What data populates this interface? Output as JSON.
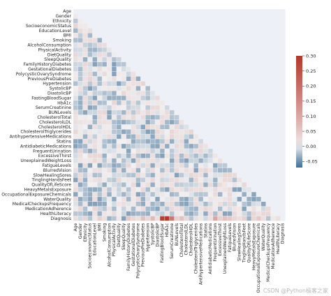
{
  "chart_data": {
    "type": "heatmap",
    "title": "",
    "variables": [
      "Age",
      "Gender",
      "Ethnicity",
      "SocioeconomicStatus",
      "EducationLevel",
      "BMI",
      "Smoking",
      "AlcoholConsumption",
      "PhysicalActivity",
      "DietQuality",
      "SleepQuality",
      "FamilyHistoryDiabetes",
      "GestationalDiabetes",
      "PolycysticOvarySyndrome",
      "PreviousPreDiabetes",
      "Hypertension",
      "SystolicBP",
      "DiastolicBP",
      "FastingBloodSugar",
      "HbA1c",
      "SerumCreatinine",
      "BUNLevels",
      "CholesterolTotal",
      "CholesterolLDL",
      "CholesterolHDL",
      "CholesterolTriglycerides",
      "AntihypertensiveMedications",
      "Statins",
      "AntidiabeticMedications",
      "FrequentUrination",
      "ExcessiveThirst",
      "UnexplainedWeightLoss",
      "FatigueLevels",
      "BlurredVision",
      "SlowHealingSores",
      "TinglingHandsFeet",
      "QualityOfLifeScore",
      "HeavyMetalsExposure",
      "OccupationalExposureChemicals",
      "WaterQuality",
      "MedicalCheckupsFrequency",
      "MedicationAdherence",
      "HealthLiteracy",
      "Diagnosis"
    ],
    "diagnosis_row": [
      0.02,
      -0.01,
      0.03,
      -0.02,
      0.01,
      0.04,
      0.02,
      -0.03,
      -0.02,
      0.01,
      -0.04,
      0.05,
      0.03,
      0.02,
      0.06,
      0.03,
      0.07,
      0.02,
      0.28,
      0.3,
      0.18,
      0.04,
      0.06,
      0.03,
      -0.02,
      0.02,
      0.01,
      -0.01,
      0.02,
      0.1,
      0.04,
      0.06,
      0.05,
      0.03,
      0.02,
      0.04,
      -0.03,
      0.03,
      0.05,
      0.02,
      -0.02,
      0.01,
      0.02
    ],
    "off_diagonal_range": [
      -0.04,
      0.04
    ],
    "colorbar": {
      "range": [
        -0.07,
        0.3
      ],
      "ticks": [
        0.3,
        0.25,
        0.2,
        0.15,
        0.1,
        0.05,
        0.0,
        -0.05
      ],
      "tick_labels": [
        "0.30",
        "0.25",
        "0.20",
        "0.15",
        "0.10",
        "0.05",
        "0.00",
        "-0.05"
      ]
    },
    "colors": {
      "negative": "#3f6f96",
      "neutral": "#f2f2f2",
      "positive": "#b5362a",
      "background": "#eef0f8"
    },
    "mask": "upper-triangle",
    "legend_placement": "right"
  },
  "watermark": "CSDN @Python极客之家"
}
